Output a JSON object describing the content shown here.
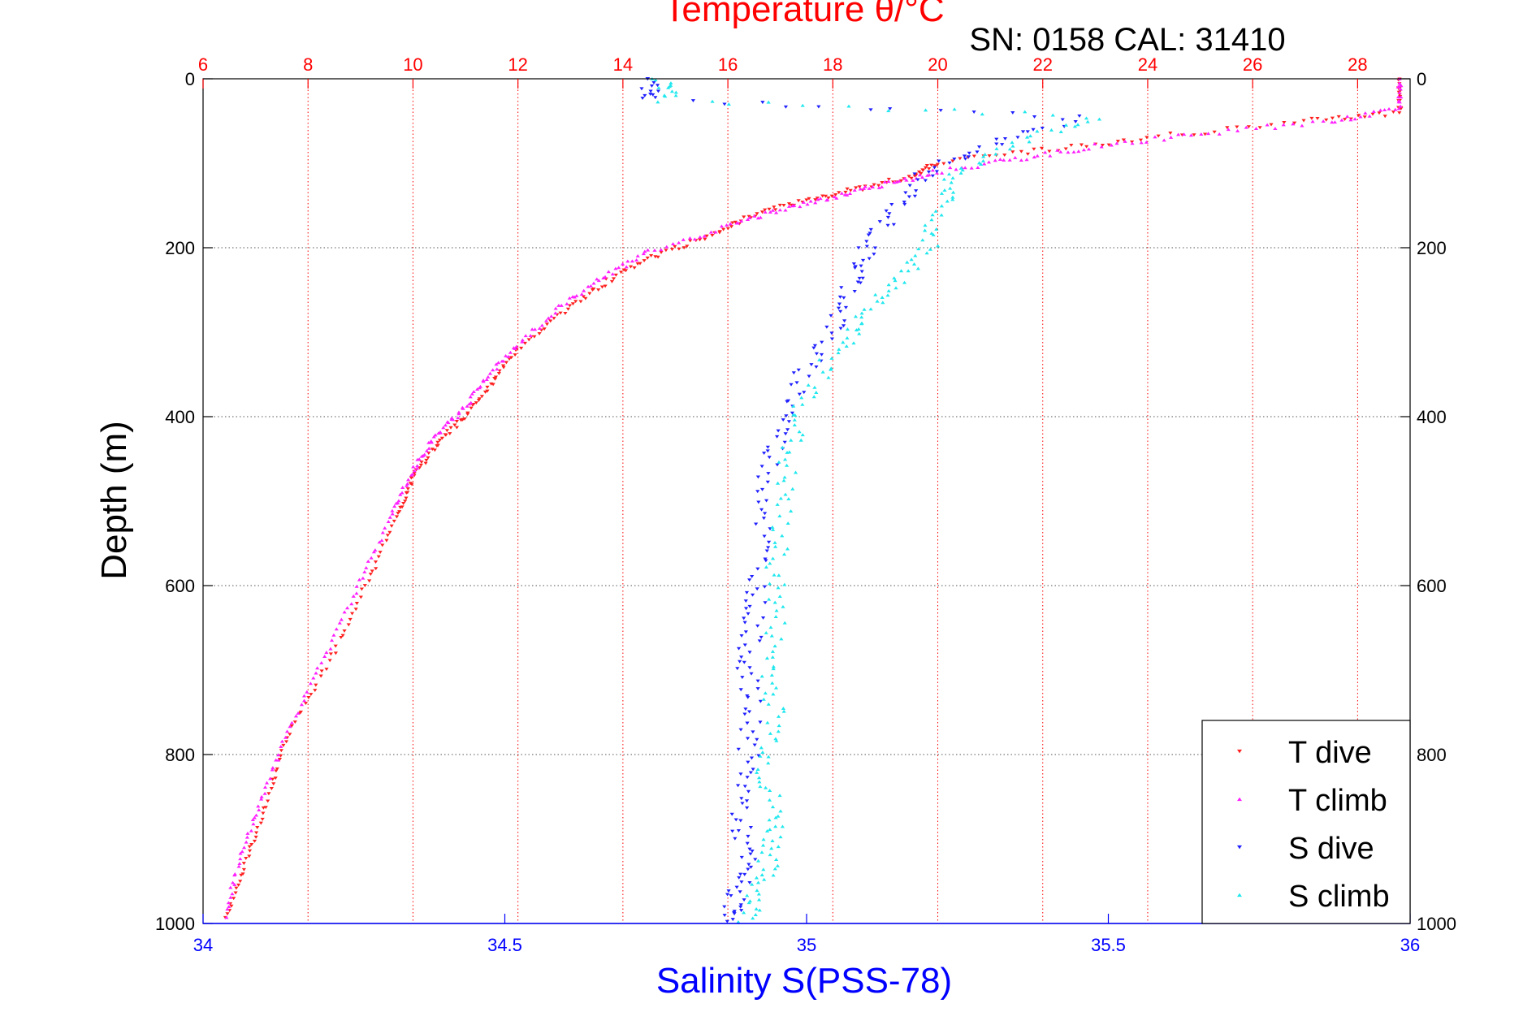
{
  "chart_data": {
    "type": "scatter",
    "title": "Temperature θ/°C",
    "subtitle": "SN: 0158  CAL: 31410",
    "xlabel_bottom": "Salinity S(PSS-78)",
    "xlabel_top": "Temperature θ/°C",
    "ylabel": "Depth (m)",
    "ylim": [
      0,
      1000
    ],
    "y_reversed": true,
    "salinity_lim": [
      34,
      36
    ],
    "temperature_lim": [
      6,
      29
    ],
    "y_ticks": [
      "0",
      "200",
      "400",
      "600",
      "800",
      "1000"
    ],
    "salinity_ticks": [
      "34",
      "34.5",
      "35",
      "35.5",
      "36"
    ],
    "temperature_ticks": [
      "6",
      "8",
      "10",
      "12",
      "14",
      "16",
      "18",
      "20",
      "22",
      "24",
      "26",
      "28"
    ],
    "grid": true,
    "legend_position": "bottom-right",
    "colors": {
      "t_dive": "#ff2020",
      "t_climb": "#ff20ff",
      "s_dive": "#2020ff",
      "s_climb": "#20e8ee",
      "temperature_axis": "#ff0000",
      "salinity_axis": "#0000ff",
      "grid_temperature": "#ff0000",
      "grid_depth": "#555555"
    },
    "series": [
      {
        "name": "T dive",
        "axis": "temperature",
        "marker": "triangle-down",
        "x": [
          28.8,
          28.8,
          27.0,
          24.0,
          22.0,
          20.0,
          19.5,
          18.5,
          17.5,
          16.5,
          15.7,
          14.6,
          13.7,
          12.9,
          12.0,
          11.5,
          11.0,
          10.5,
          10.0,
          9.7,
          9.1,
          8.4,
          7.6,
          7.2,
          6.8,
          6.4
        ],
        "y": [
          0,
          40,
          50,
          70,
          85,
          100,
          115,
          130,
          145,
          160,
          185,
          210,
          240,
          275,
          320,
          360,
          400,
          430,
          470,
          520,
          600,
          690,
          780,
          860,
          930,
          1000
        ]
      },
      {
        "name": "T climb",
        "axis": "temperature",
        "marker": "triangle-up",
        "x": [
          28.8,
          28.8,
          27.5,
          25.0,
          23.0,
          21.5,
          20.0,
          19.0,
          18.0,
          17.0,
          16.0,
          14.5,
          13.6,
          12.8,
          12.0,
          11.4,
          10.9,
          10.4,
          10.0,
          9.6,
          9.0,
          8.3,
          7.6,
          7.1,
          6.7,
          6.4
        ],
        "y": [
          0,
          35,
          50,
          65,
          80,
          95,
          110,
          125,
          140,
          155,
          175,
          205,
          235,
          270,
          315,
          355,
          395,
          425,
          465,
          515,
          595,
          685,
          775,
          855,
          925,
          995
        ]
      },
      {
        "name": "S dive",
        "axis": "salinity",
        "marker": "triangle-down",
        "x": [
          34.74,
          34.74,
          35.45,
          35.3,
          35.2,
          35.15,
          35.1,
          35.08,
          35.05,
          35.0,
          34.97,
          34.94,
          34.93,
          34.92,
          34.91,
          34.9,
          34.91,
          34.9,
          34.89,
          34.9,
          34.88,
          34.88
        ],
        "y": [
          0,
          25,
          45,
          80,
          110,
          150,
          200,
          240,
          290,
          340,
          400,
          450,
          520,
          600,
          650,
          700,
          760,
          820,
          880,
          930,
          970,
          1000
        ]
      },
      {
        "name": "S climb",
        "axis": "salinity",
        "marker": "triangle-up",
        "x": [
          34.76,
          34.77,
          35.48,
          35.35,
          35.25,
          35.22,
          35.2,
          35.15,
          35.1,
          35.05,
          35.0,
          34.97,
          34.96,
          34.95,
          34.95,
          34.94,
          34.95,
          34.93,
          34.95,
          34.94,
          34.92,
          34.9
        ],
        "y": [
          0,
          25,
          45,
          75,
          110,
          150,
          200,
          240,
          280,
          320,
          380,
          440,
          500,
          570,
          630,
          700,
          760,
          820,
          880,
          920,
          960,
          1000
        ]
      }
    ]
  },
  "legend": {
    "entries": [
      "T dive",
      "T climb",
      "S dive",
      "S climb"
    ]
  }
}
